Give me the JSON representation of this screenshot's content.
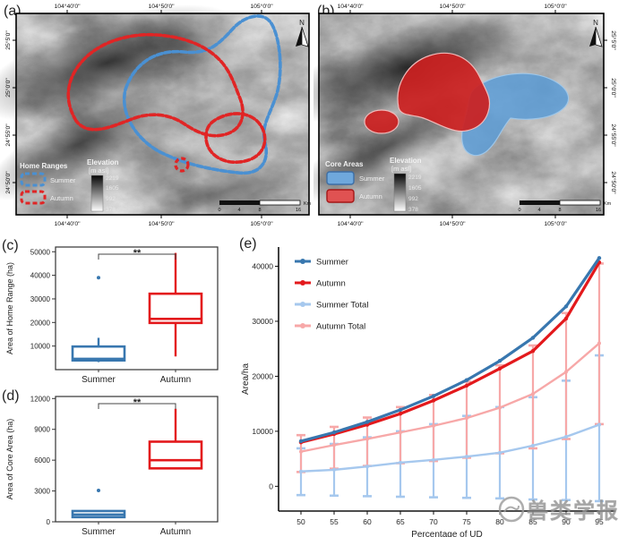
{
  "figure": {
    "background": "#ffffff"
  },
  "watermark": {
    "text": "兽类学报"
  },
  "colors": {
    "summer": "#3877af",
    "autumn": "#e3191c",
    "summer_total": "#a6c8ee",
    "autumn_total": "#f7a8a8",
    "summer_fill": "#6fa8dc",
    "autumn_fill": "#d93030"
  },
  "panel_a": {
    "label": "(a)",
    "north_label": "N",
    "top_ticks": [
      "104°40'0\"",
      "104°50'0\"",
      "105°0'0\""
    ],
    "bottom_ticks": [
      "104°40'0\"",
      "104°50'0\"",
      "105°0'0\""
    ],
    "left_ticks": [
      "25°5'0\"",
      "25°0'0\"",
      "24°55'0\"",
      "24°50'0\""
    ],
    "legend": {
      "title": "Home Ranges",
      "items": [
        {
          "label": "Summer",
          "color": "#4a90d2"
        },
        {
          "label": "Autumn",
          "color": "#e02525"
        }
      ]
    },
    "elevation": {
      "title": "Elevation",
      "subtitle": "[m asl]",
      "values": [
        "2219",
        "1605",
        "992",
        "378"
      ]
    },
    "scalebar": {
      "ticks": [
        "0",
        "4",
        "8",
        "16"
      ],
      "unit": "Km"
    }
  },
  "panel_b": {
    "label": "(b)",
    "north_label": "N",
    "top_ticks": [
      "104°40'0\"",
      "104°50'0\"",
      "105°0'0\""
    ],
    "bottom_ticks": [
      "104°40'0\"",
      "104°50'0\"",
      "105°0'0\""
    ],
    "right_ticks": [
      "25°5'0\"",
      "25°0'0\"",
      "24°55'0\"",
      "24°50'0\""
    ],
    "legend": {
      "title": "Core Areas",
      "items": [
        {
          "label": "Summer",
          "color": "#6fa8dc"
        },
        {
          "label": "Autumn",
          "color": "#d93030"
        }
      ]
    },
    "elevation": {
      "title": "Elevation",
      "subtitle": "[m asl]",
      "values": [
        "2219",
        "1605",
        "992",
        "378"
      ]
    },
    "scalebar": {
      "ticks": [
        "0",
        "4",
        "8",
        "16"
      ],
      "unit": "Km"
    }
  },
  "chart_data": [
    {
      "id": "c",
      "type": "box",
      "panel_label": "(c)",
      "ylabel": "Area of Home Range (ha)",
      "categories": [
        "Summer",
        "Autumn"
      ],
      "ylim": [
        0,
        52000
      ],
      "yticks": [
        10000,
        20000,
        30000,
        40000,
        50000
      ],
      "significance": "**",
      "boxes": [
        {
          "name": "Summer",
          "color": "#3877af",
          "whisker_low": 3200,
          "q1": 3900,
          "median": 4600,
          "q3": 9800,
          "whisker_high": 13500,
          "outliers": [
            39000
          ]
        },
        {
          "name": "Autumn",
          "color": "#e3191c",
          "whisker_low": 5600,
          "q1": 19800,
          "median": 21500,
          "q3": 32200,
          "whisker_high": 49500,
          "outliers": []
        }
      ]
    },
    {
      "id": "d",
      "type": "box",
      "panel_label": "(d)",
      "ylabel": "Area of Core Area (ha)",
      "categories": [
        "Summer",
        "Autumn"
      ],
      "ylim": [
        0,
        12200
      ],
      "yticks": [
        0,
        3000,
        6000,
        9000,
        12000
      ],
      "significance": "**",
      "boxes": [
        {
          "name": "Summer",
          "color": "#3877af",
          "whisker_low": 400,
          "q1": 450,
          "median": 700,
          "q3": 1050,
          "whisker_high": 1100,
          "outliers": [
            3050
          ]
        },
        {
          "name": "Autumn",
          "color": "#e3191c",
          "whisker_low": 5100,
          "q1": 5200,
          "median": 6000,
          "q3": 7800,
          "whisker_high": 11000,
          "outliers": []
        }
      ]
    },
    {
      "id": "e",
      "type": "line",
      "panel_label": "(e)",
      "xlabel": "Percentage of UD",
      "ylabel": "Area/ha",
      "x": [
        50,
        55,
        60,
        65,
        70,
        75,
        80,
        85,
        90,
        95
      ],
      "ylim": [
        -4500,
        43500
      ],
      "yticks": [
        0,
        10000,
        20000,
        30000,
        40000
      ],
      "legend_position": "top-left",
      "series": [
        {
          "name": "Summer",
          "color": "#3877af",
          "values": [
            8200,
            9800,
            11700,
            13900,
            16400,
            19300,
            22800,
            27000,
            32700,
            41500
          ]
        },
        {
          "name": "Autumn",
          "color": "#e3191c",
          "values": [
            8000,
            9500,
            11200,
            13200,
            15600,
            18300,
            21400,
            24600,
            30500,
            40700
          ]
        },
        {
          "name": "Summer Total",
          "color": "#a6c8ee",
          "values": [
            2700,
            3000,
            3600,
            4300,
            4800,
            5400,
            6100,
            7400,
            9000,
            11200
          ],
          "err_low": [
            -1600,
            -1700,
            -1800,
            -1900,
            -2000,
            -2100,
            -2200,
            -2400,
            -2500,
            -2700
          ],
          "err_high": [
            6900,
            7700,
            8900,
            10000,
            11300,
            12800,
            14400,
            16200,
            19200,
            23800
          ]
        },
        {
          "name": "Autumn Total",
          "color": "#f7a8a8",
          "values": [
            6300,
            7500,
            8600,
            9800,
            11000,
            12400,
            14300,
            16800,
            20800,
            26000
          ],
          "err_low": [
            2600,
            3200,
            3700,
            4200,
            4600,
            5200,
            6000,
            6900,
            8600,
            11300
          ],
          "err_high": [
            9300,
            10800,
            12500,
            14400,
            16600,
            19000,
            22000,
            25600,
            31500,
            40500
          ]
        }
      ]
    }
  ]
}
